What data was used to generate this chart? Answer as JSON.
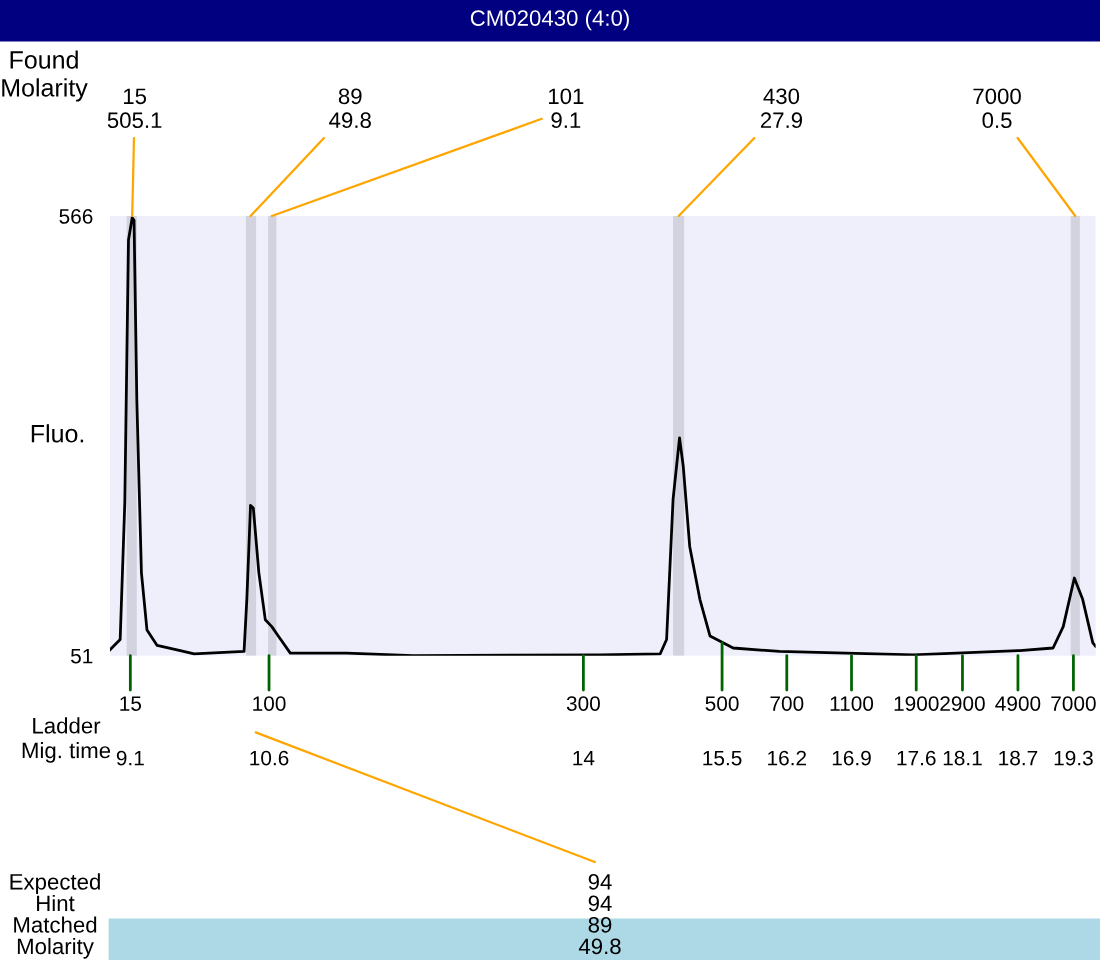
{
  "chart_data": {
    "type": "line",
    "title": "CM020430 (4:0)",
    "ylabel": "Fluo.",
    "x": [
      8.88,
      8.99,
      9.04,
      9.08,
      9.12,
      9.14,
      9.17,
      9.22,
      9.28,
      9.39,
      9.64,
      9.79,
      10.33,
      10.36,
      10.4,
      10.43,
      10.49,
      10.56,
      10.63,
      10.7,
      10.83,
      11.44,
      12.16,
      14.18,
      14.83,
      14.9,
      14.97,
      15.04,
      15.08,
      15.15,
      15.26,
      15.37,
      15.62,
      16.12,
      16.84,
      17.57,
      18.72,
      19.08,
      19.19,
      19.31,
      19.4,
      19.51,
      19.54
    ],
    "series": [
      {
        "color": "#000000",
        "values": [
          58,
          70,
          230,
          538,
          564,
          561,
          351,
          148,
          81,
          63,
          57,
          53,
          56,
          117,
          227,
          224,
          148,
          93,
          85,
          74,
          54,
          54,
          51,
          52,
          53,
          70,
          234,
          306,
          273,
          179,
          117,
          74,
          60,
          56,
          54,
          52,
          57,
          60,
          85,
          142,
          117,
          66,
          62
        ]
      }
    ],
    "xlim": [
      8.88,
      19.54
    ],
    "ylim": [
      51,
      566
    ],
    "yticks": [
      51,
      566
    ],
    "xticks": [
      9.1,
      10.6,
      14,
      15.5,
      16.2,
      16.9,
      17.6,
      18.1,
      18.7,
      19.3
    ],
    "bands": [
      {
        "axis": "x",
        "from": 9.06,
        "to": 9.17,
        "color": "#d3d3e0"
      },
      {
        "axis": "x",
        "from": 10.35,
        "to": 10.46,
        "color": "#d3d3e0"
      },
      {
        "axis": "x",
        "from": 10.59,
        "to": 10.68,
        "color": "#d3d3e0"
      },
      {
        "axis": "x",
        "from": 14.97,
        "to": 15.09,
        "color": "#d3d3e0"
      },
      {
        "axis": "x",
        "from": 19.27,
        "to": 19.37,
        "color": "#d3d3e0"
      }
    ],
    "annotations": [
      "Found\nMolarity",
      "Ladder\nMig. time",
      "Expected\nHint\nMatched\nMolarity",
      "94\n94\n89\n49.8",
      {
        "text": "15\n505.1",
        "x": 9.12,
        "y": 566
      },
      {
        "text": "89\n49.8",
        "x": 10.4,
        "y": 566
      },
      {
        "text": "101\n9.1",
        "x": 10.63,
        "y": 566
      },
      {
        "text": "430\n27.9",
        "x": 15.03,
        "y": 566
      },
      {
        "text": "7000\n0.5",
        "x": 19.32,
        "y": 566
      },
      {
        "text": "15",
        "x": 9.1,
        "y": 51
      },
      {
        "text": "100",
        "x": 10.6,
        "y": 51
      },
      {
        "text": "300",
        "x": 14,
        "y": 51
      },
      {
        "text": "500",
        "x": 15.5,
        "y": 66
      },
      {
        "text": "700",
        "x": 16.2,
        "y": 51
      },
      {
        "text": "1100",
        "x": 16.9,
        "y": 51
      },
      {
        "text": "1900",
        "x": 17.6,
        "y": 51
      },
      {
        "text": "2900",
        "x": 18.1,
        "y": 51
      },
      {
        "text": "4900",
        "x": 18.7,
        "y": 51
      },
      {
        "text": "7000",
        "x": 19.3,
        "y": 51
      }
    ],
    "grid": false,
    "legend": false,
    "marker": "none",
    "line_style": "solid"
  }
}
